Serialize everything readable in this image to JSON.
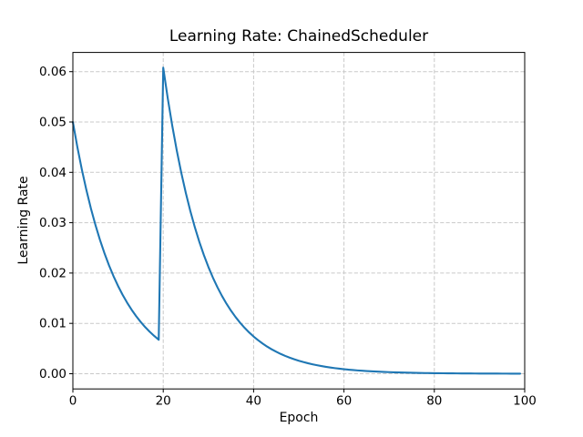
{
  "chart_data": {
    "type": "line",
    "title": "Learning Rate: ChainedScheduler",
    "xlabel": "Epoch",
    "ylabel": "Learning Rate",
    "grid": true,
    "grid_linestyle": "dashed",
    "grid_color": "#c9c9c9",
    "background_color": "#ffffff",
    "spine_color": "#000000",
    "line_color": "#1f77b4",
    "line_width": 2.1,
    "legend": null,
    "xlim": [
      0,
      100
    ],
    "ylim": [
      -0.003022,
      0.063818
    ],
    "xticks": [
      0,
      20,
      40,
      60,
      80,
      100
    ],
    "xtick_labels": [
      "0",
      "20",
      "40",
      "60",
      "80",
      "100"
    ],
    "yticks": [
      0.0,
      0.01,
      0.02,
      0.03,
      0.04,
      0.05,
      0.06
    ],
    "ytick_labels": [
      "0.00",
      "0.01",
      "0.02",
      "0.03",
      "0.04",
      "0.05",
      "0.06"
    ],
    "series": [
      {
        "name": "learning_rate",
        "x": [
          0,
          1,
          2,
          3,
          4,
          5,
          6,
          7,
          8,
          9,
          10,
          11,
          12,
          13,
          14,
          15,
          16,
          17,
          18,
          19,
          20,
          21,
          22,
          23,
          24,
          25,
          26,
          27,
          28,
          29,
          30,
          31,
          32,
          33,
          34,
          35,
          36,
          37,
          38,
          39,
          40,
          41,
          42,
          43,
          44,
          45,
          46,
          47,
          48,
          49,
          50,
          51,
          52,
          53,
          54,
          55,
          56,
          57,
          58,
          59,
          60,
          61,
          62,
          63,
          64,
          65,
          66,
          67,
          68,
          69,
          70,
          71,
          72,
          73,
          74,
          75,
          76,
          77,
          78,
          79,
          80,
          81,
          82,
          83,
          84,
          85,
          86,
          87,
          88,
          89,
          90,
          91,
          92,
          93,
          94,
          95,
          96,
          97,
          98,
          99
        ],
        "y": [
          0.05,
          0.045,
          0.0405,
          0.03645,
          0.032805,
          0.029525,
          0.026572,
          0.023915,
          0.021523,
          0.019371,
          0.017434,
          0.015691,
          0.014121,
          0.012709,
          0.011438,
          0.010295,
          0.009265,
          0.008339,
          0.007505,
          0.006754,
          0.060788,
          0.054709,
          0.049239,
          0.044315,
          0.039883,
          0.035895,
          0.032305,
          0.029075,
          0.026167,
          0.023551,
          0.021196,
          0.019076,
          0.017168,
          0.015452,
          0.013906,
          0.012516,
          0.011264,
          0.010138,
          0.009124,
          0.008212,
          0.00739,
          0.006651,
          0.005986,
          0.005388,
          0.004849,
          0.004364,
          0.003928,
          0.003535,
          0.003181,
          0.002863,
          0.002577,
          0.002319,
          0.002087,
          0.001879,
          0.001691,
          0.001522,
          0.001369,
          0.001233,
          0.001109,
          0.000998,
          0.000899,
          0.000809,
          0.000728,
          0.000655,
          0.00059,
          0.000531,
          0.000478,
          0.00043,
          0.000387,
          0.000348,
          0.000313,
          0.000282,
          0.000254,
          0.000228,
          0.000206,
          0.000185,
          0.000166,
          0.00015,
          0.000135,
          0.000121,
          0.000109,
          9.8e-05,
          8.8e-05,
          8e-05,
          7.2e-05,
          6.5e-05,
          5.8e-05,
          5.2e-05,
          4.7e-05,
          4.2e-05,
          3.8e-05,
          3.4e-05,
          3.1e-05,
          2.8e-05,
          2.5e-05,
          2.2e-05,
          2e-05,
          1.8e-05,
          1.6e-05,
          1.5e-05
        ]
      }
    ]
  }
}
